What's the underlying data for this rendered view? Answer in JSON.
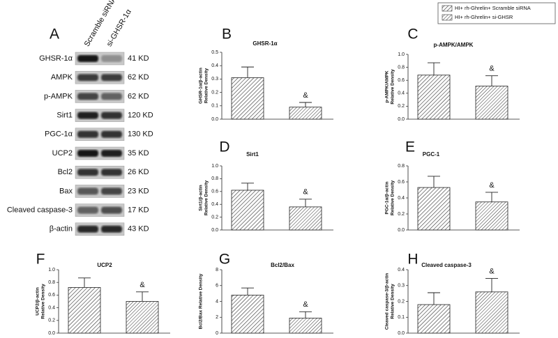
{
  "legend": [
    "HI+ rh-Ghrelin+ Scramble siRNA",
    "HI+ rh-Ghrelin+ si-GHSR"
  ],
  "blot": {
    "label": "A",
    "columns": [
      "Scramble siRNA",
      "si-GHSR-1α"
    ],
    "rows": [
      {
        "protein": "GHSR-1α",
        "size": "41 KD"
      },
      {
        "protein": "AMPK",
        "size": "62 KD"
      },
      {
        "protein": "p-AMPK",
        "size": "62 KD"
      },
      {
        "protein": "Sirt1",
        "size": "120 KD"
      },
      {
        "protein": "PGC-1α",
        "size": "130 KD"
      },
      {
        "protein": "UCP2",
        "size": "35 KD"
      },
      {
        "protein": "Bcl2",
        "size": "26 KD"
      },
      {
        "protein": "Bax",
        "size": "23 KD"
      },
      {
        "protein": "Cleaved caspase-3",
        "size": "17 KD"
      },
      {
        "protein": "β-actin",
        "size": "43 KD"
      }
    ]
  },
  "chart_data": [
    {
      "label": "B",
      "type": "bar",
      "title": "GHSR-1α",
      "ylabel": [
        "GHSR-1α/β-actin",
        "Relative Density"
      ],
      "values": [
        0.31,
        0.09
      ],
      "errors": [
        0.08,
        0.035
      ],
      "annotations": [
        null,
        "&"
      ],
      "ylim": [
        0,
        0.5
      ],
      "yticks": [
        {
          "value": 0,
          "label": "0.0"
        },
        0.1,
        0.2,
        0.3,
        0.4,
        0.5
      ]
    },
    {
      "label": "C",
      "type": "bar",
      "title": "p-AMPK/AMPK",
      "ylabel": [
        "p-AMPK/AMPK",
        "Relative Density"
      ],
      "values": [
        0.68,
        0.51
      ],
      "errors": [
        0.19,
        0.16
      ],
      "annotations": [
        null,
        "&"
      ],
      "ylim": [
        0,
        1
      ],
      "yticks": [
        {
          "value": 0,
          "label": "0.0"
        },
        0.2,
        0.4,
        0.6,
        0.8,
        {
          "value": 1,
          "label": "1.0"
        }
      ]
    },
    {
      "label": "D",
      "type": "bar",
      "title": "Sirt1",
      "ylabel": [
        "Sirt1/β-actin",
        "Relative Density"
      ],
      "values": [
        0.62,
        0.36
      ],
      "errors": [
        0.11,
        0.12
      ],
      "annotations": [
        null,
        "&"
      ],
      "ylim": [
        0,
        1
      ],
      "yticks": [
        {
          "value": 0,
          "label": "0.0"
        },
        0.2,
        0.4,
        0.6,
        0.8,
        {
          "value": 1,
          "label": "1.0"
        }
      ]
    },
    {
      "label": "E",
      "type": "bar",
      "title": "PGC-1",
      "ylabel": [
        "PGC-1α/β-actin",
        "Relative Density"
      ],
      "values": [
        0.53,
        0.35
      ],
      "errors": [
        0.14,
        0.12
      ],
      "annotations": [
        null,
        "&"
      ],
      "ylim": [
        0,
        0.8
      ],
      "yticks": [
        {
          "value": 0,
          "label": "0.0"
        },
        0.2,
        0.4,
        0.6,
        0.8
      ]
    },
    {
      "label": "F",
      "type": "bar",
      "title": "UCP2",
      "ylabel": [
        "UCP2/β-actin",
        "Relative Density"
      ],
      "values": [
        0.72,
        0.5
      ],
      "errors": [
        0.15,
        0.15
      ],
      "annotations": [
        null,
        "&"
      ],
      "ylim": [
        0,
        1
      ],
      "yticks": [
        {
          "value": 0,
          "label": "0.0"
        },
        0.2,
        0.4,
        0.6,
        0.8,
        {
          "value": 1,
          "label": "1.0"
        }
      ]
    },
    {
      "label": "G",
      "type": "bar",
      "title": "Bcl2/Bax",
      "ylabel": [
        "Bcl2/Bax Relative Density"
      ],
      "values": [
        4.8,
        1.9
      ],
      "errors": [
        0.9,
        0.8
      ],
      "annotations": [
        null,
        "&"
      ],
      "ylim": [
        0,
        8
      ],
      "yticks": [
        0,
        2,
        4,
        6,
        8
      ]
    },
    {
      "label": "H",
      "type": "bar",
      "title": "Cleaved caspase-3",
      "ylabel": [
        "Cleaved caspase-3/β-actin",
        "Relative Density"
      ],
      "values": [
        0.18,
        0.26
      ],
      "errors": [
        0.075,
        0.085
      ],
      "annotations": [
        null,
        "&"
      ],
      "ylim": [
        0,
        0.4
      ],
      "yticks": [
        {
          "value": 0,
          "label": "0.0"
        },
        0.1,
        0.2,
        0.3,
        0.4
      ]
    }
  ]
}
